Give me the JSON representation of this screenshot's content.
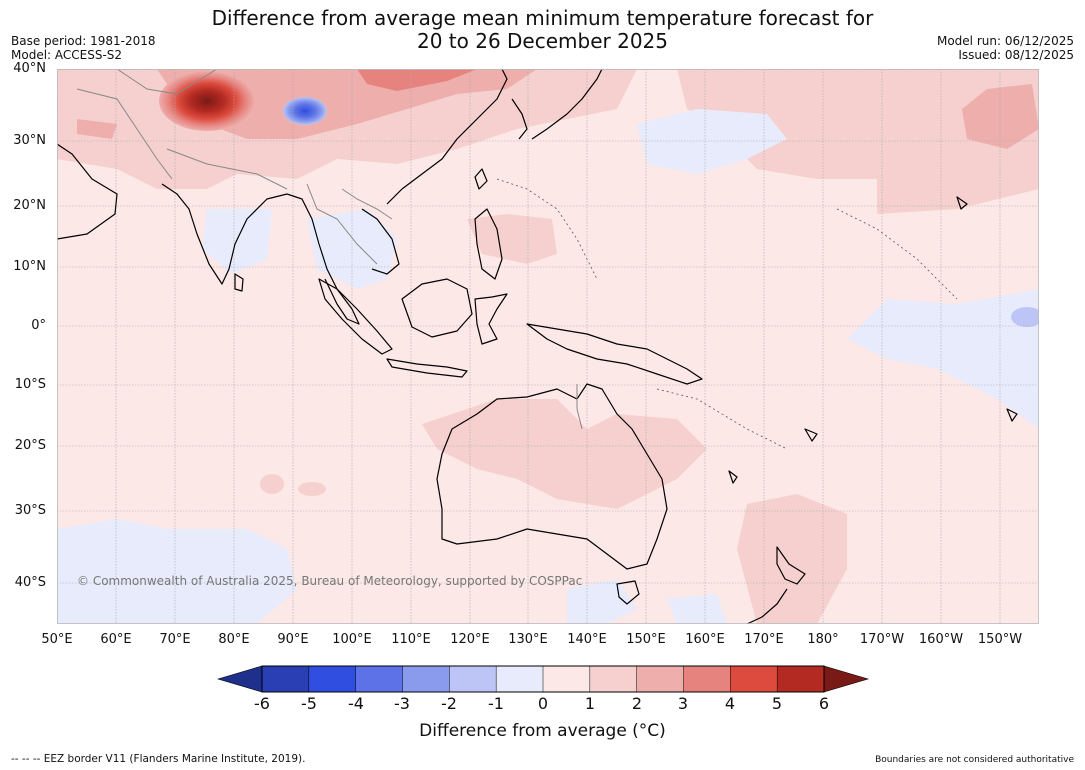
{
  "title": {
    "line1": "Difference from average mean minimum temperature forecast for",
    "line2": "20 to 26 December 2025"
  },
  "meta_left": {
    "base_period": "Base period: 1981-2018",
    "model": "Model: ACCESS-S2"
  },
  "meta_right": {
    "model_run": "Model run: 06/12/2025",
    "issued": "Issued: 08/12/2025"
  },
  "map": {
    "copyright": "© Commonwealth of Australia 2025, Bureau of Meteorology, supported by COSPPac",
    "lat_labels": [
      "40°N",
      "30°N",
      "20°N",
      "10°N",
      "0°",
      "10°S",
      "20°S",
      "30°S",
      "40°S"
    ],
    "lon_labels": [
      "50°E",
      "60°E",
      "70°E",
      "80°E",
      "90°E",
      "100°E",
      "110°E",
      "120°E",
      "130°E",
      "140°E",
      "150°E",
      "160°E",
      "170°E",
      "180°",
      "170°W",
      "160°W",
      "150°W"
    ],
    "ocean_color": "#fce8e6"
  },
  "colorbar": {
    "tick_labels": [
      "-6",
      "-5",
      "-4",
      "-3",
      "-2",
      "-1",
      "0",
      "1",
      "2",
      "3",
      "4",
      "5",
      "6"
    ],
    "colors": [
      "#1f2f8c",
      "#2a3fb4",
      "#304fe0",
      "#5c72e6",
      "#8a9bee",
      "#bcc5f5",
      "#e8ebfb",
      "#fce8e6",
      "#f5d0cf",
      "#eeaeac",
      "#e6837e",
      "#dc4b3e",
      "#b32a22",
      "#7a1a16"
    ],
    "label": "Difference from average (°C)"
  },
  "footer": {
    "eez": "--  --  -- EEZ border V11 (Flanders Marine Institute, 2019).",
    "disclaimer": "Boundaries are not considered authoritative"
  }
}
